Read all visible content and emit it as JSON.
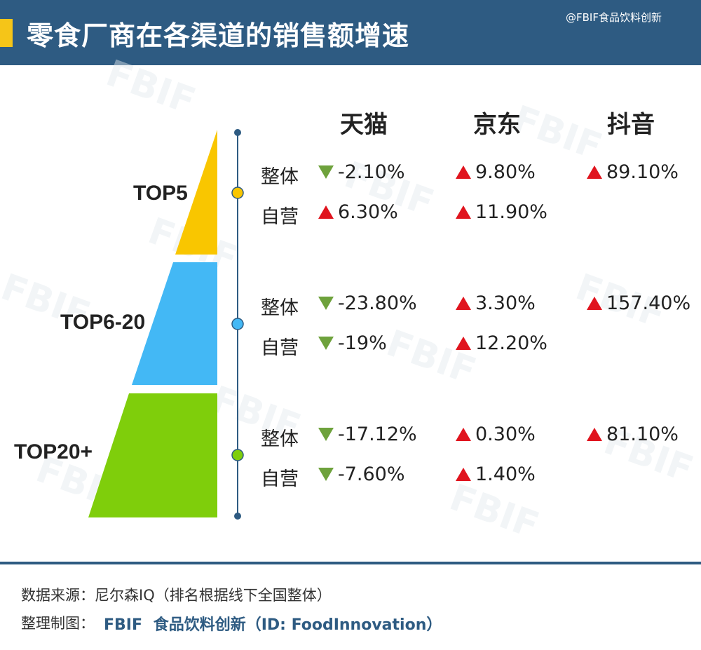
{
  "header": {
    "title": "零食厂商在各渠道的销售额增速",
    "credit": "@FBIF食品饮料创新",
    "accent_color": "#f5c518",
    "background_color": "#2e5b82"
  },
  "watermark_text": "FBIF",
  "chart_data": {
    "type": "table",
    "columns": [
      "天猫",
      "京东",
      "抖音"
    ],
    "tiers": [
      {
        "label": "TOP5",
        "color": "#f9c600",
        "rows": [
          {
            "label": "整体",
            "values": [
              "-2.10%",
              "9.80%",
              "89.10%"
            ],
            "directions": [
              "down",
              "up",
              "up"
            ]
          },
          {
            "label": "自营",
            "values": [
              "6.30%",
              "11.90%",
              ""
            ],
            "directions": [
              "up",
              "up",
              ""
            ]
          }
        ]
      },
      {
        "label": "TOP6-20",
        "color": "#43b8f5",
        "rows": [
          {
            "label": "整体",
            "values": [
              "-23.80%",
              "3.30%",
              "157.40%"
            ],
            "directions": [
              "down",
              "up",
              "up"
            ]
          },
          {
            "label": "自营",
            "values": [
              "-19%",
              "12.20%",
              ""
            ],
            "directions": [
              "down",
              "up",
              ""
            ]
          }
        ]
      },
      {
        "label": "TOP20+",
        "color": "#7fce0b",
        "rows": [
          {
            "label": "整体",
            "values": [
              "-17.12%",
              "0.30%",
              "81.10%"
            ],
            "directions": [
              "down",
              "up",
              "up"
            ]
          },
          {
            "label": "自营",
            "values": [
              "-7.60%",
              "1.40%",
              ""
            ],
            "directions": [
              "down",
              "up",
              ""
            ]
          }
        ]
      }
    ],
    "up_color": "#e0141e",
    "down_color": "#6ea23c"
  },
  "footer": {
    "source": "数据来源：尼尔森IQ（排名根据线下全国整体）",
    "credit_label": "整理制图：",
    "brand_logo": "FBIF",
    "brand_name": "食品饮料创新（ID: FoodInnovation）"
  }
}
